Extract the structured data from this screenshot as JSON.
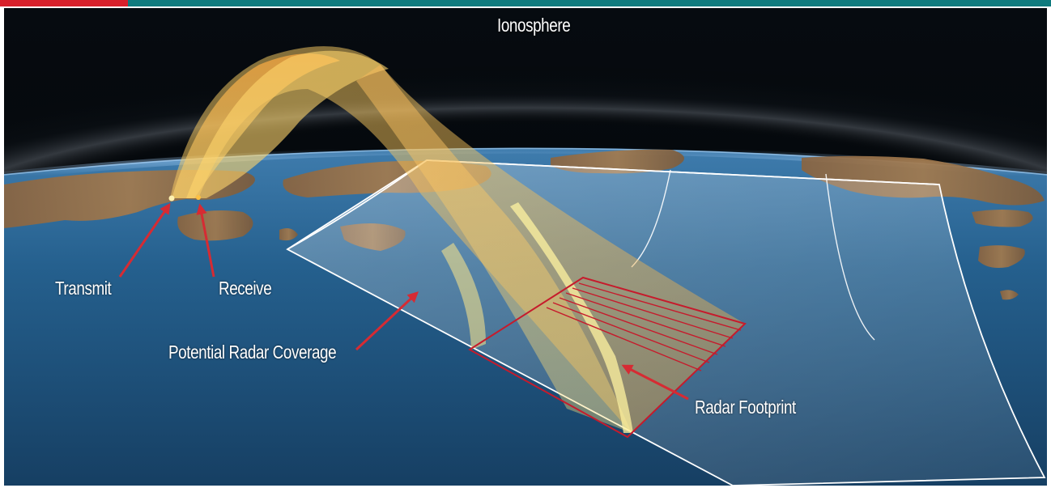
{
  "labels": {
    "ionosphere": "Ionosphere",
    "transmit": "Transmit",
    "receive": "Receive",
    "potential_coverage": "Potential Radar Coverage",
    "radar_footprint": "Radar Footprint"
  },
  "colors": {
    "header_red": "#d8202b",
    "header_teal": "#0f7b7e",
    "sky": "#03070b",
    "ocean": "#1c4f79",
    "land": "#9a6a43",
    "beam": "#ffcf5a",
    "coverage_outline": "#ffffff",
    "arrow": "#d62b33",
    "footprint": "#c61b2c"
  }
}
